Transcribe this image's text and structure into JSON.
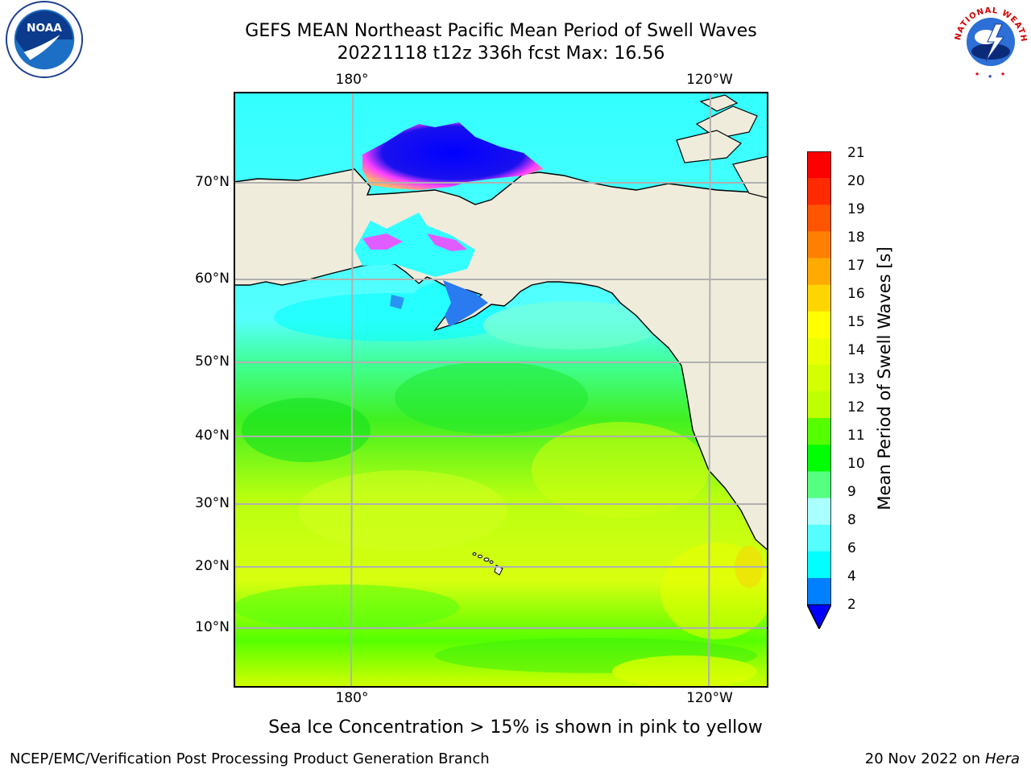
{
  "header": {
    "title_line1": "GEFS MEAN Northeast Pacific Mean Period of Swell Waves",
    "title_line2": "20221118 t12z 336h fcst   Max: 16.56"
  },
  "logos": {
    "left": {
      "name": "NOAA",
      "ring_text": "NATIONAL OCEANIC AND ATMOSPHERIC ADMINISTRATION · U.S. DEPARTMENT OF COMMERCE"
    },
    "right": {
      "name": "NATIONAL WEATHER SERVICE"
    }
  },
  "map": {
    "lon_labels": [
      "180°",
      "120°W"
    ],
    "lat_labels": [
      "70°N",
      "60°N",
      "50°N",
      "40°N",
      "30°N",
      "20°N",
      "10°N"
    ],
    "land_color": "#efecdc",
    "grid_color": "#b0b0b0"
  },
  "colorbar": {
    "label": "Mean Period of Swell Waves [s]",
    "ticks": [
      "21",
      "20",
      "19",
      "18",
      "17",
      "16",
      "15",
      "14",
      "13",
      "12",
      "11",
      "10",
      "9",
      "8",
      "6",
      "4",
      "2"
    ],
    "colors_top_to_bottom": [
      "#ff0000",
      "#ff2a00",
      "#ff5500",
      "#ff8000",
      "#ffaa00",
      "#ffd500",
      "#ffff00",
      "#eaff00",
      "#d4ff00",
      "#bfff00",
      "#55ff00",
      "#00ff00",
      "#55ff80",
      "#aaffff",
      "#55ffff",
      "#00ffff",
      "#0080ff"
    ],
    "under_color": "#0000ff"
  },
  "note": "Sea Ice Concentration > 15% is shown in pink to yellow",
  "footer": {
    "left": "NCEP/EMC/Verification Post Processing Product Generation Branch",
    "date": "20 Nov 2022 on",
    "machine": "Hera"
  }
}
